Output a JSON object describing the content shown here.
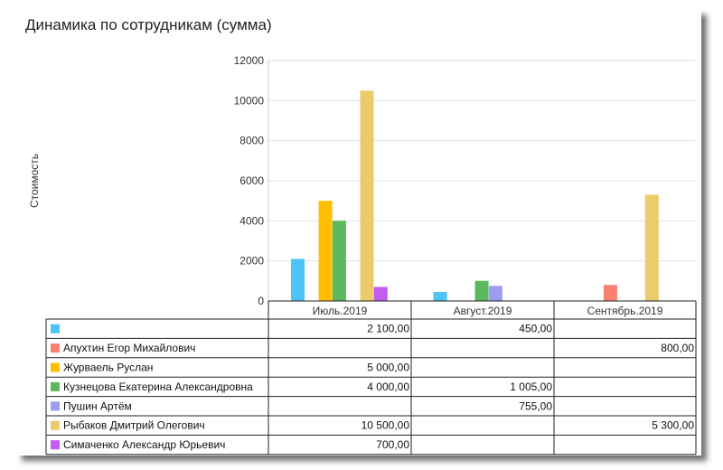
{
  "chart_data": {
    "type": "bar",
    "title": "Динамика по сотрудникам (сумма)",
    "ylabel": "Стоимость",
    "ylim": [
      0,
      12000
    ],
    "yticks": [
      0,
      2000,
      4000,
      6000,
      8000,
      10000,
      12000
    ],
    "categories": [
      "Июль.2019",
      "Август.2019",
      "Сентябрь.2019"
    ],
    "grid": true,
    "series": [
      {
        "name": "",
        "color": "#4dc3f7",
        "values": [
          2100,
          450,
          null
        ],
        "labels": [
          "2 100,00",
          "450,00",
          ""
        ]
      },
      {
        "name": "Апухтин Егор Михайлович",
        "color": "#fa8072",
        "values": [
          null,
          null,
          800
        ],
        "labels": [
          "",
          "",
          "800,00"
        ]
      },
      {
        "name": "Журваель Руслан",
        "color": "#ffbf00",
        "values": [
          5000,
          null,
          null
        ],
        "labels": [
          "5 000,00",
          "",
          ""
        ]
      },
      {
        "name": "Кузнецова Екатерина Александровна",
        "color": "#5cb85c",
        "values": [
          4000,
          1005,
          null
        ],
        "labels": [
          "4 000,00",
          "1 005,00",
          ""
        ]
      },
      {
        "name": "Пушин Артём",
        "color": "#9b9ef0",
        "values": [
          null,
          755,
          null
        ],
        "labels": [
          "",
          "755,00",
          ""
        ]
      },
      {
        "name": "Рыбаков Дмитрий Олегович",
        "color": "#eccb6b",
        "values": [
          10500,
          null,
          5300
        ],
        "labels": [
          "10 500,00",
          "",
          "5 300,00"
        ]
      },
      {
        "name": "Симаченко Александр Юрьевич",
        "color": "#c45bf2",
        "values": [
          700,
          null,
          null
        ],
        "labels": [
          "700,00",
          "",
          ""
        ]
      }
    ]
  }
}
